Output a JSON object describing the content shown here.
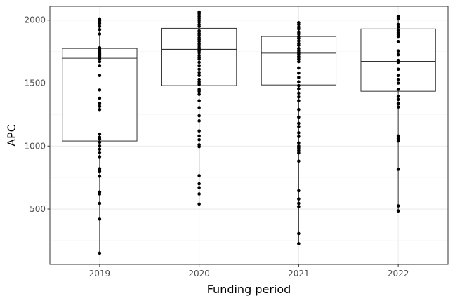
{
  "chart_data": {
    "type": "boxplot",
    "xlabel": "Funding period",
    "ylabel": "APC",
    "categories": [
      "2019",
      "2020",
      "2021",
      "2022"
    ],
    "y_ticks": [
      500,
      1000,
      1500,
      2000
    ],
    "y_tick_labels": [
      "500",
      "1000",
      "1500",
      "2000"
    ],
    "ylim": [
      60,
      2110
    ],
    "grid": true,
    "theme": "bw",
    "boxes": [
      {
        "category": "2019",
        "min": 150,
        "q1": 1040,
        "median": 1700,
        "q3": 1775,
        "max": 2010
      },
      {
        "category": "2020",
        "min": 540,
        "q1": 1480,
        "median": 1765,
        "q3": 1935,
        "max": 2065
      },
      {
        "category": "2021",
        "min": 225,
        "q1": 1485,
        "median": 1740,
        "q3": 1870,
        "max": 1980
      },
      {
        "category": "2022",
        "min": 485,
        "q1": 1435,
        "median": 1670,
        "q3": 1930,
        "max": 2030
      }
    ],
    "points": [
      {
        "category": "2019",
        "values": [
          2010,
          1995,
          1975,
          1950,
          1925,
          1890,
          1780,
          1770,
          1755,
          1745,
          1735,
          1730,
          1715,
          1705,
          1690,
          1670,
          1640,
          1560,
          1445,
          1380,
          1340,
          1315,
          1290,
          1095,
          1070,
          1055,
          1030,
          1000,
          975,
          950,
          915,
          820,
          800,
          760,
          635,
          620,
          545,
          420,
          150
        ]
      },
      {
        "category": "2020",
        "values": [
          2065,
          2050,
          2030,
          2015,
          2000,
          1985,
          1965,
          1950,
          1915,
          1895,
          1880,
          1860,
          1845,
          1830,
          1810,
          1795,
          1780,
          1770,
          1755,
          1740,
          1720,
          1705,
          1690,
          1665,
          1640,
          1610,
          1585,
          1560,
          1530,
          1510,
          1490,
          1450,
          1435,
          1410,
          1360,
          1305,
          1240,
          1200,
          1120,
          1080,
          1050,
          1010,
          995,
          765,
          700,
          670,
          620,
          540
        ]
      },
      {
        "category": "2021",
        "values": [
          1980,
          1965,
          1945,
          1930,
          1905,
          1890,
          1870,
          1855,
          1835,
          1815,
          1800,
          1775,
          1760,
          1745,
          1730,
          1710,
          1690,
          1670,
          1620,
          1580,
          1545,
          1510,
          1480,
          1455,
          1420,
          1390,
          1360,
          1290,
          1230,
          1180,
          1155,
          1105,
          1075,
          1025,
          1000,
          985,
          965,
          945,
          880,
          645,
          580,
          545,
          520,
          305,
          225
        ]
      },
      {
        "category": "2022",
        "values": [
          2030,
          2010,
          1965,
          1945,
          1920,
          1900,
          1885,
          1870,
          1830,
          1755,
          1725,
          1680,
          1665,
          1610,
          1560,
          1530,
          1500,
          1450,
          1395,
          1370,
          1340,
          1310,
          1080,
          1060,
          1040,
          815,
          525,
          485
        ]
      }
    ]
  }
}
